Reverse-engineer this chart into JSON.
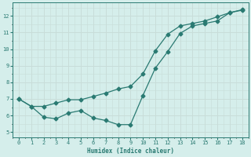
{
  "xlabel": "Humidex (Indice chaleur)",
  "ylabel": "",
  "bg_color": "#d5eeeb",
  "grid_color": "#c8ddd9",
  "line_color": "#2a7a72",
  "xlim": [
    -0.5,
    18.5
  ],
  "ylim": [
    4.7,
    12.8
  ],
  "xticks": [
    0,
    1,
    2,
    3,
    4,
    5,
    6,
    7,
    8,
    9,
    10,
    11,
    12,
    13,
    14,
    15,
    16,
    17,
    18
  ],
  "yticks": [
    5,
    6,
    7,
    8,
    9,
    10,
    11,
    12
  ],
  "line1_x": [
    0,
    1,
    2,
    3,
    4,
    5,
    6,
    7,
    8,
    9,
    10,
    11,
    12,
    13,
    14,
    15,
    16,
    17,
    18
  ],
  "line1_y": [
    7.0,
    6.55,
    5.9,
    5.8,
    6.15,
    6.3,
    5.85,
    5.7,
    5.45,
    5.45,
    7.2,
    8.85,
    9.85,
    10.95,
    11.4,
    11.55,
    11.7,
    12.2,
    12.35
  ],
  "line2_x": [
    0,
    1,
    2,
    3,
    4,
    5,
    6,
    7,
    8,
    9,
    10,
    11,
    12,
    13,
    14,
    15,
    16,
    17,
    18
  ],
  "line2_y": [
    7.0,
    6.55,
    6.55,
    6.75,
    6.95,
    6.95,
    7.15,
    7.35,
    7.6,
    7.75,
    8.5,
    9.9,
    10.9,
    11.4,
    11.55,
    11.7,
    11.95,
    12.2,
    12.38
  ],
  "marker": "D",
  "markersize": 2.5,
  "linewidth": 0.9
}
